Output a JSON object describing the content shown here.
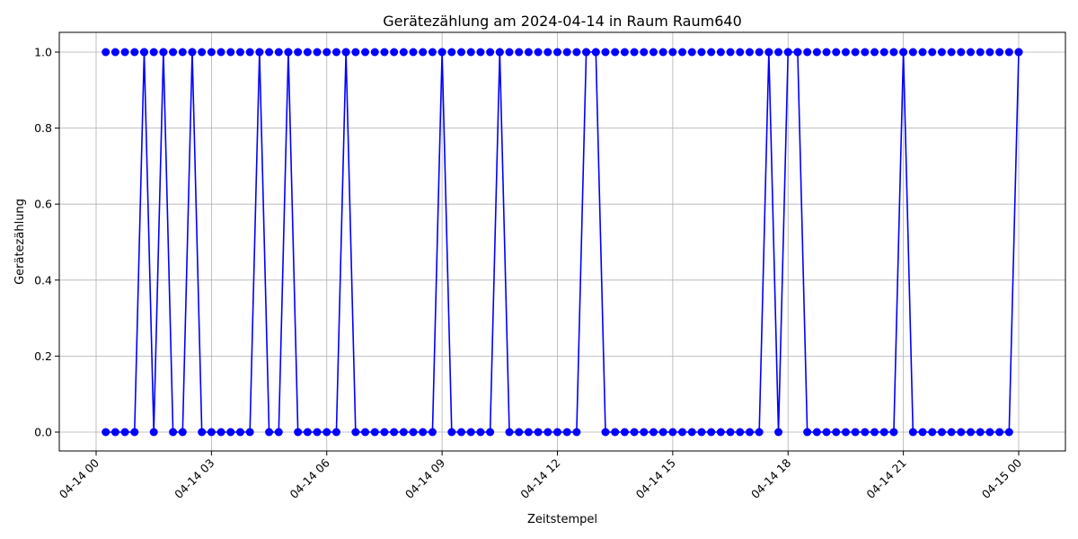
{
  "chart_data": {
    "type": "line",
    "title": "Gerätezählung am 2024-04-14 in Raum Raum640",
    "xlabel": "Zeitstempel",
    "ylabel": "Gerätezählung",
    "x_start": "2024-04-14 00:15",
    "x_step_minutes": 15,
    "x_ticks": [
      "04-14 00",
      "04-14 03",
      "04-14 06",
      "04-14 09",
      "04-14 12",
      "04-14 15",
      "04-14 18",
      "04-14 21",
      "04-15 00"
    ],
    "y_ticks": [
      "0.0",
      "0.2",
      "0.4",
      "0.6",
      "0.8",
      "1.0"
    ],
    "xlim": [
      "2024-04-13 23:32",
      "2024-04-15 00:43"
    ],
    "ylim": [
      -0.05,
      1.05
    ],
    "grid": true,
    "series": [
      {
        "color": "#0000ff",
        "marker": "circle",
        "values": [
          0,
          0,
          0,
          0,
          1,
          0,
          1,
          0,
          0,
          1,
          0,
          0,
          0,
          0,
          0,
          0,
          1,
          0,
          0,
          1,
          0,
          0,
          0,
          0,
          0,
          1,
          0,
          0,
          0,
          0,
          0,
          0,
          0,
          0,
          0,
          1,
          0,
          0,
          0,
          0,
          0,
          1,
          0,
          0,
          0,
          0,
          0,
          0,
          0,
          0,
          1,
          1,
          0,
          0,
          0,
          0,
          0,
          0,
          0,
          0,
          0,
          0,
          0,
          0,
          0,
          0,
          0,
          0,
          0,
          1,
          0,
          1,
          1,
          0,
          0,
          0,
          0,
          0,
          0,
          0,
          0,
          0,
          0,
          1,
          0,
          0,
          0,
          0,
          0,
          0,
          0,
          0,
          0,
          0,
          0,
          1
        ],
        "inverse_values": [
          1,
          1,
          1,
          1,
          1,
          1,
          1,
          1,
          1,
          1,
          1,
          1,
          1,
          1,
          1,
          1,
          1,
          1,
          1,
          1,
          1,
          1,
          1,
          1,
          1,
          1,
          1,
          1,
          1,
          1,
          1,
          1,
          1,
          1,
          1,
          1,
          1,
          1,
          1,
          1,
          1,
          1,
          1,
          1,
          1,
          1,
          1,
          1,
          1,
          1,
          1,
          1,
          1,
          1,
          1,
          1,
          1,
          1,
          1,
          1,
          1,
          1,
          1,
          1,
          1,
          1,
          1,
          1,
          1,
          1,
          1,
          1,
          1,
          1,
          1,
          1,
          1,
          1,
          1,
          1,
          1,
          1,
          1,
          1,
          1,
          1,
          1,
          1,
          1,
          1,
          1,
          1,
          1,
          1,
          1,
          1
        ]
      }
    ]
  }
}
